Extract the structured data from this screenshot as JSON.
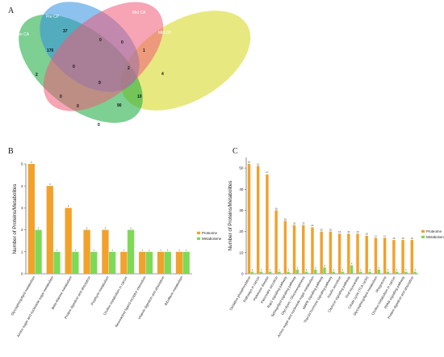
{
  "panels": {
    "venn": {
      "letter": "A",
      "sets": [
        {
          "name": "Pre CP",
          "color": "#2f8fe0"
        },
        {
          "name": "Mid CA",
          "color": "#f05a78"
        },
        {
          "name": "Pre CA",
          "color": "#13a838"
        },
        {
          "name": "Mid CP",
          "color": "#d6d51a"
        }
      ],
      "regions": [
        {
          "id": "preCP-only",
          "count": "37"
        },
        {
          "id": "midCA-only",
          "count": "0"
        },
        {
          "id": "preCA-only",
          "count": "2"
        },
        {
          "id": "midCP-only",
          "count": "4"
        },
        {
          "id": "preCA-preCP",
          "count": "176"
        },
        {
          "id": "preCP-midCA",
          "count": "0"
        },
        {
          "id": "midCA-midCP",
          "count": "1"
        },
        {
          "id": "preCA-preCP-midCA",
          "count": "0"
        },
        {
          "id": "preCP-midCA-midCP",
          "count": "2"
        },
        {
          "id": "all-four",
          "count": "9"
        },
        {
          "id": "preCA-midCA",
          "count": "0"
        },
        {
          "id": "preCP-midCP",
          "count": "10"
        },
        {
          "id": "preCA-midCA-midCP",
          "count": "0"
        },
        {
          "id": "preCA-preCP-midCP",
          "count": "90"
        },
        {
          "id": "preCA-midCP",
          "count": "0"
        }
      ]
    },
    "b": {
      "letter": "B"
    },
    "c": {
      "letter": "C"
    }
  },
  "colors": {
    "proteome": "#f2a12b",
    "metabolome": "#7ed957"
  },
  "chart_data": [
    {
      "type": "bar",
      "panel": "B",
      "ylabel": "Number of Proteins/Metabolites",
      "ylim": [
        0,
        5
      ],
      "yticks": [
        0,
        1,
        2,
        3,
        4,
        5
      ],
      "legend": "right",
      "categories": [
        "Glycosphingolipid metabolism",
        "Amino sugar and nucleotide sugar metabolism",
        "Beta-Alanine metabolism",
        "Protein digestion and absorption",
        "Porphyrin metabolism",
        "Choline metabolism in cancer",
        "Neuroactive ligand-receptor interaction",
        "Vitamin digestion and absorption",
        "Riboflavin metabolism"
      ],
      "series": [
        {
          "name": "Proteome",
          "values": [
            5,
            4,
            3,
            2,
            2,
            1,
            1,
            1,
            1
          ]
        },
        {
          "name": "Metabolome",
          "values": [
            2,
            1,
            1,
            1,
            1,
            2,
            1,
            1,
            1
          ]
        }
      ]
    },
    {
      "type": "bar",
      "panel": "C",
      "ylabel": "Number of Proteins/Metabolites",
      "ylim": [
        0,
        55
      ],
      "yticks": [
        0,
        10,
        20,
        30,
        40,
        50
      ],
      "legend": "right",
      "categories": [
        "Oxidative phosphorylation",
        "Pathways in cancer",
        "Parkinson disease",
        "Pancreatic secretion",
        "Rap1 signaling pathway",
        "Sphingolipid signaling pathway",
        "Glycolysis / Gluconeogenesis",
        "Amino sugar and nucleotide sugar metabolism",
        "MAPK signaling pathway",
        "Thyroid hormone signaling pathway",
        "Insulin secretion",
        "Oxytocin signaling pathway",
        "Viral myocarditis",
        "Citrate cycle (TCA cycle)",
        "Glycosphingolipid metabolism",
        "Phagosome",
        "Choline metabolism in cancer",
        "PPAR signaling pathway",
        "Protein digestion and absorption"
      ],
      "series": [
        {
          "name": "Proteome",
          "values": [
            52,
            51,
            47,
            30,
            25,
            23,
            23,
            22,
            20,
            20,
            19,
            19,
            19,
            18,
            17,
            17,
            16,
            16,
            16
          ]
        },
        {
          "name": "Metabolome",
          "values": [
            1,
            1,
            1,
            1,
            1,
            2,
            1,
            2,
            3,
            1,
            1,
            4,
            1,
            1,
            2,
            1,
            1,
            1,
            1
          ]
        }
      ]
    }
  ]
}
